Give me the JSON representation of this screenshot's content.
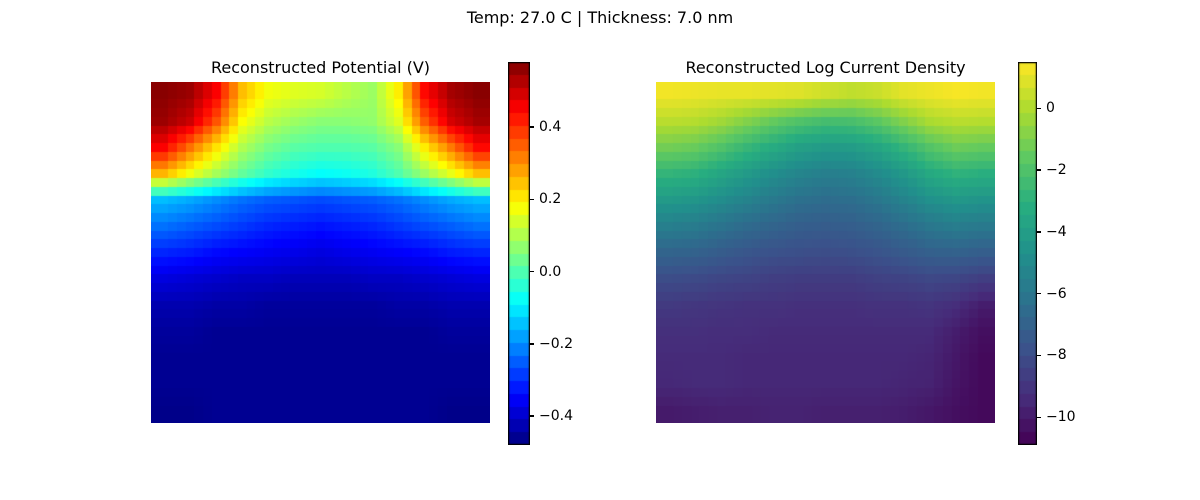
{
  "suptitle": "Temp: 27.0 C | Thickness: 7.0 nm",
  "chart_data": [
    {
      "type": "heatmap",
      "title": "Reconstructed Potential (V)",
      "colormap": "jet",
      "vmin": -0.48,
      "vmax": 0.58,
      "colorbar_ticks": [
        0.4,
        0.2,
        0.0,
        -0.2,
        -0.4
      ],
      "colorbar_tick_labels": [
        "0.4",
        "0.2",
        "0.0",
        "−0.2",
        "−0.4"
      ],
      "grid": [
        [
          0.57,
          0.55,
          0.45,
          0.25,
          0.17,
          0.15,
          0.14,
          0.11,
          0.08,
          0.2,
          0.44,
          0.54,
          0.57
        ],
        [
          0.55,
          0.5,
          0.36,
          0.18,
          0.11,
          0.08,
          0.06,
          0.06,
          0.07,
          0.15,
          0.35,
          0.49,
          0.54
        ],
        [
          0.45,
          0.33,
          0.21,
          0.1,
          0.04,
          0.01,
          0.0,
          0.0,
          0.01,
          0.06,
          0.2,
          0.32,
          0.44
        ],
        [
          0.26,
          0.17,
          0.09,
          0.02,
          -0.03,
          -0.06,
          -0.08,
          -0.07,
          -0.05,
          0.0,
          0.08,
          0.16,
          0.25
        ],
        [
          -0.15,
          -0.17,
          -0.2,
          -0.23,
          -0.25,
          -0.26,
          -0.27,
          -0.26,
          -0.25,
          -0.23,
          -0.2,
          -0.17,
          -0.15
        ],
        [
          -0.23,
          -0.25,
          -0.27,
          -0.29,
          -0.31,
          -0.32,
          -0.33,
          -0.32,
          -0.31,
          -0.29,
          -0.27,
          -0.25,
          -0.23
        ],
        [
          -0.31,
          -0.32,
          -0.34,
          -0.35,
          -0.36,
          -0.37,
          -0.38,
          -0.37,
          -0.36,
          -0.35,
          -0.34,
          -0.32,
          -0.31
        ],
        [
          -0.38,
          -0.39,
          -0.4,
          -0.41,
          -0.41,
          -0.42,
          -0.42,
          -0.42,
          -0.41,
          -0.41,
          -0.4,
          -0.39,
          -0.38
        ],
        [
          -0.43,
          -0.43,
          -0.44,
          -0.44,
          -0.45,
          -0.45,
          -0.45,
          -0.45,
          -0.45,
          -0.44,
          -0.44,
          -0.43,
          -0.43
        ],
        [
          -0.45,
          -0.45,
          -0.46,
          -0.46,
          -0.46,
          -0.46,
          -0.46,
          -0.46,
          -0.46,
          -0.46,
          -0.46,
          -0.45,
          -0.45
        ],
        [
          -0.46,
          -0.46,
          -0.46,
          -0.46,
          -0.46,
          -0.46,
          -0.46,
          -0.46,
          -0.46,
          -0.46,
          -0.46,
          -0.46,
          -0.46
        ],
        [
          -0.46,
          -0.46,
          -0.46,
          -0.46,
          -0.46,
          -0.46,
          -0.46,
          -0.46,
          -0.46,
          -0.46,
          -0.46,
          -0.46,
          -0.46
        ],
        [
          -0.47,
          -0.47,
          -0.46,
          -0.46,
          -0.46,
          -0.46,
          -0.46,
          -0.46,
          -0.46,
          -0.46,
          -0.46,
          -0.47,
          -0.47
        ]
      ]
    },
    {
      "type": "heatmap",
      "title": "Reconstructed Log Current Density",
      "colormap": "viridis",
      "vmin": -10.9,
      "vmax": 1.5,
      "colorbar_ticks": [
        0,
        -2,
        -4,
        -6,
        -8,
        -10
      ],
      "colorbar_tick_labels": [
        "0",
        "−2",
        "−4",
        "−6",
        "−8",
        "−10"
      ],
      "grid": [
        [
          1.3,
          1.2,
          1.1,
          1.1,
          1.0,
          0.9,
          0.6,
          0.3,
          0.5,
          1.0,
          1.2,
          1.4,
          1.3
        ],
        [
          0.2,
          0.1,
          -0.3,
          -0.9,
          -1.5,
          -2.0,
          -2.3,
          -2.2,
          -1.7,
          -0.9,
          -0.1,
          0.2,
          0.1
        ],
        [
          -1.2,
          -1.4,
          -2.0,
          -2.7,
          -3.3,
          -3.9,
          -4.2,
          -4.1,
          -3.6,
          -2.8,
          -1.9,
          -1.3,
          -1.5
        ],
        [
          -2.8,
          -3.0,
          -3.6,
          -4.2,
          -4.8,
          -5.3,
          -5.6,
          -5.5,
          -5.0,
          -4.3,
          -3.4,
          -2.9,
          -3.1
        ],
        [
          -4.2,
          -4.4,
          -4.9,
          -5.4,
          -5.9,
          -6.3,
          -6.5,
          -6.4,
          -6.0,
          -5.4,
          -4.7,
          -4.3,
          -4.5
        ],
        [
          -5.6,
          -5.8,
          -6.2,
          -6.6,
          -6.9,
          -7.2,
          -7.3,
          -7.2,
          -6.9,
          -6.5,
          -6.0,
          -5.7,
          -5.9
        ],
        [
          -6.9,
          -7.0,
          -7.3,
          -7.6,
          -7.8,
          -7.9,
          -8.0,
          -7.9,
          -7.7,
          -7.4,
          -7.1,
          -7.0,
          -7.2
        ],
        [
          -8.0,
          -8.1,
          -8.3,
          -8.4,
          -8.6,
          -8.7,
          -8.7,
          -8.7,
          -8.5,
          -8.4,
          -8.2,
          -8.3,
          -8.6
        ],
        [
          -8.8,
          -8.9,
          -9.0,
          -9.1,
          -9.1,
          -9.2,
          -9.2,
          -9.2,
          -9.1,
          -9.1,
          -9.0,
          -9.3,
          -9.9
        ],
        [
          -9.2,
          -9.2,
          -9.3,
          -9.3,
          -9.4,
          -9.4,
          -9.4,
          -9.4,
          -9.4,
          -9.4,
          -9.4,
          -9.9,
          -10.4
        ],
        [
          -9.4,
          -9.4,
          -9.4,
          -9.5,
          -9.5,
          -9.5,
          -9.5,
          -9.5,
          -9.5,
          -9.5,
          -9.6,
          -10.1,
          -10.6
        ],
        [
          -9.5,
          -9.4,
          -9.4,
          -9.5,
          -9.5,
          -9.5,
          -9.5,
          -9.5,
          -9.5,
          -9.6,
          -9.7,
          -10.2,
          -10.6
        ],
        [
          -10.0,
          -9.9,
          -9.8,
          -9.8,
          -9.7,
          -9.7,
          -9.8,
          -9.8,
          -9.8,
          -9.9,
          -10.1,
          -10.4,
          -10.6
        ]
      ]
    }
  ]
}
